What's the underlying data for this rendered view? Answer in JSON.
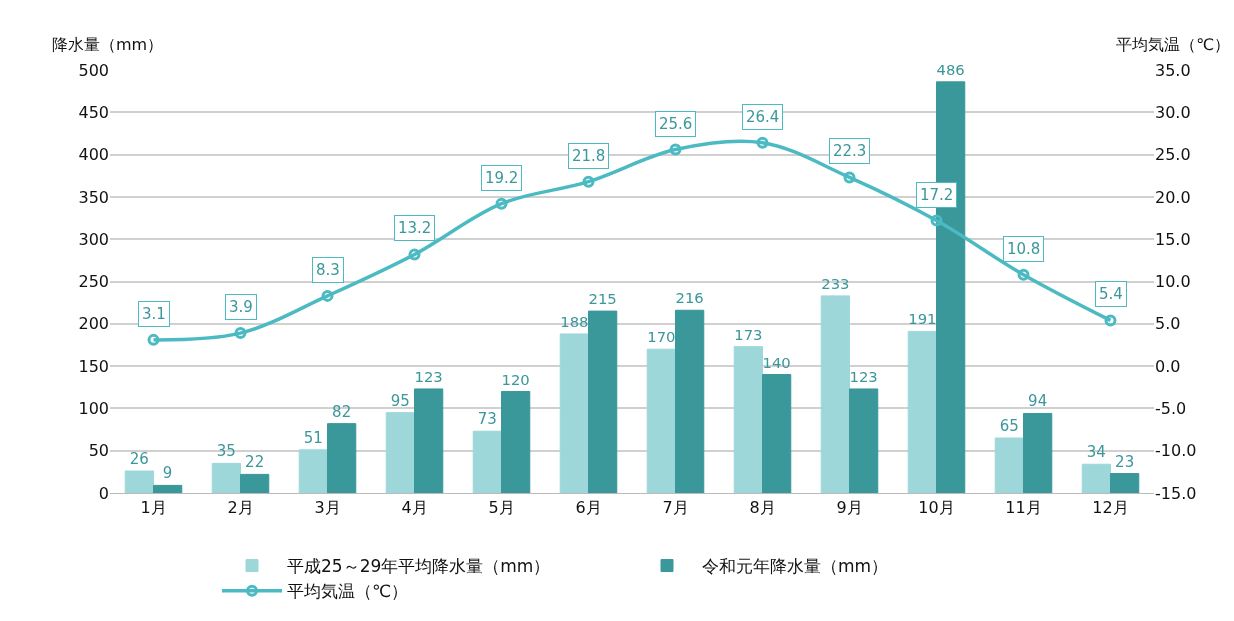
{
  "chart_data": {
    "type": "bar",
    "ylabel": "降水量（mm）",
    "y2label": "平均気温（℃）",
    "categories": [
      "1月",
      "2月",
      "3月",
      "4月",
      "5月",
      "6月",
      "7月",
      "8月",
      "9月",
      "10月",
      "11月",
      "12月"
    ],
    "series": [
      {
        "name": "平成25～29年平均降水量（mm）",
        "color": "#9dd7da",
        "values": [
          26,
          35,
          51,
          95,
          73,
          188,
          170,
          173,
          233,
          191,
          65,
          34
        ]
      },
      {
        "name": "令和元年降水量（mm）",
        "color": "#3a979a",
        "values": [
          9,
          22,
          82,
          123,
          120,
          215,
          216,
          140,
          123,
          486,
          94,
          23
        ]
      },
      {
        "name": "平均気温（℃）",
        "type": "line",
        "axis": "y2",
        "color": "#4bbac2",
        "marker": "circle",
        "values": [
          3.1,
          3.9,
          8.3,
          13.2,
          19.2,
          21.8,
          25.6,
          26.4,
          22.3,
          17.2,
          10.8,
          5.4
        ]
      }
    ],
    "ylim": [
      0,
      500
    ],
    "yticks": [
      0,
      50,
      100,
      150,
      200,
      250,
      300,
      350,
      400,
      450,
      500
    ],
    "y2lim": [
      -15,
      35
    ],
    "y2ticks": [
      {
        "value": -15,
        "label": "-15.0"
      },
      {
        "value": -10,
        "label": "-10.0"
      },
      {
        "value": -5,
        "label": "-5.0"
      },
      {
        "value": 0,
        "label": "0.0"
      },
      {
        "value": 5,
        "label": "5.0"
      },
      {
        "value": 10,
        "label": "10.0"
      },
      {
        "value": 15,
        "label": "15.0"
      },
      {
        "value": 20,
        "label": "20.0"
      },
      {
        "value": 25,
        "label": "25.0"
      },
      {
        "value": 30,
        "label": "30.0"
      },
      {
        "value": 35,
        "label": "35.0"
      }
    ],
    "grid": "y",
    "legend": "bottom",
    "data_labels": true
  }
}
